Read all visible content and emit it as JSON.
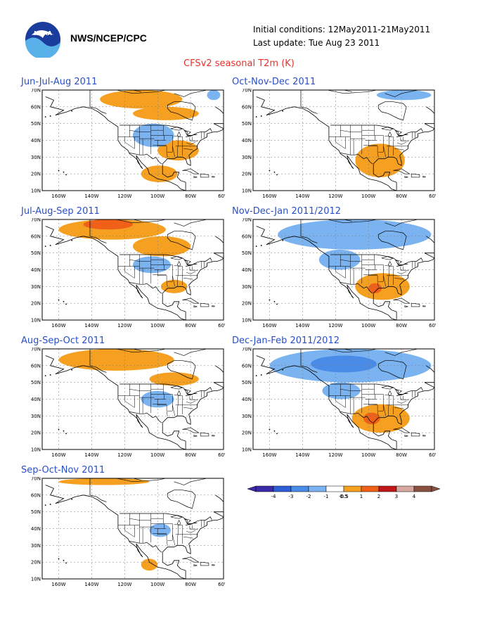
{
  "header": {
    "org": "NWS/NCEP/CPC",
    "initial_conditions": "Initial conditions: 12May2011-21May2011",
    "last_update": "Last update: Tue Aug 23 2011",
    "title": "CFSv2 seasonal T2m (K)",
    "logo": "noaa-logo"
  },
  "axes": {
    "lat_ticks": [
      "70N",
      "60N",
      "50N",
      "40N",
      "30N",
      "20N",
      "10N"
    ],
    "lon_ticks": [
      "160W",
      "140W",
      "120W",
      "100W",
      "80W",
      "60W"
    ]
  },
  "panels": [
    {
      "title": "Jun-Jul-Aug 2011",
      "anomalies": [
        {
          "cat": "warm1",
          "lon": [
            -135,
            -85
          ],
          "lat": [
            59,
            70
          ]
        },
        {
          "cat": "warm1",
          "lon": [
            -115,
            -75
          ],
          "lat": [
            52,
            60
          ]
        },
        {
          "cat": "warm1",
          "lon": [
            -100,
            -75
          ],
          "lat": [
            28,
            40
          ]
        },
        {
          "cat": "warm1",
          "lon": [
            -110,
            -88
          ],
          "lat": [
            15,
            25
          ]
        },
        {
          "cat": "cool1",
          "lon": [
            -115,
            -90
          ],
          "lat": [
            36,
            50
          ]
        },
        {
          "cat": "cool1",
          "lon": [
            -70,
            -62
          ],
          "lat": [
            64,
            70
          ]
        }
      ]
    },
    {
      "title": "Oct-Nov-Dec 2011",
      "anomalies": [
        {
          "cat": "warm1",
          "lon": [
            -108,
            -78
          ],
          "lat": [
            18,
            38
          ]
        },
        {
          "cat": "cool1",
          "lon": [
            -95,
            -62
          ],
          "lat": [
            64,
            70
          ]
        }
      ]
    },
    {
      "title": "Jul-Aug-Sep 2011",
      "anomalies": [
        {
          "cat": "warm1",
          "lon": [
            -160,
            -95
          ],
          "lat": [
            58,
            70
          ]
        },
        {
          "cat": "warm2",
          "lon": [
            -145,
            -115
          ],
          "lat": [
            64,
            70
          ]
        },
        {
          "cat": "warm1",
          "lon": [
            -115,
            -80
          ],
          "lat": [
            48,
            60
          ]
        },
        {
          "cat": "warm1",
          "lon": [
            -98,
            -82
          ],
          "lat": [
            26,
            34
          ]
        },
        {
          "cat": "cool1",
          "lon": [
            -115,
            -92
          ],
          "lat": [
            38,
            48
          ]
        }
      ]
    },
    {
      "title": "Nov-Dec-Jan 2011/2012",
      "anomalies": [
        {
          "cat": "cool1",
          "lon": [
            -155,
            -62
          ],
          "lat": [
            52,
            70
          ]
        },
        {
          "cat": "cool1",
          "lon": [
            -130,
            -105
          ],
          "lat": [
            40,
            52
          ]
        },
        {
          "cat": "warm1",
          "lon": [
            -108,
            -75
          ],
          "lat": [
            22,
            38
          ]
        },
        {
          "cat": "warm2",
          "lon": [
            -100,
            -92
          ],
          "lat": [
            26,
            32
          ]
        }
      ]
    },
    {
      "title": "Aug-Sep-Oct 2011",
      "anomalies": [
        {
          "cat": "warm1",
          "lon": [
            -160,
            -90
          ],
          "lat": [
            57,
            70
          ]
        },
        {
          "cat": "warm1",
          "lon": [
            -105,
            -75
          ],
          "lat": [
            48,
            56
          ]
        },
        {
          "cat": "cool1",
          "lon": [
            -110,
            -90
          ],
          "lat": [
            35,
            45
          ]
        }
      ]
    },
    {
      "title": "Dec-Jan-Feb 2011/2012",
      "anomalies": [
        {
          "cat": "cool1",
          "lon": [
            -160,
            -62
          ],
          "lat": [
            50,
            70
          ]
        },
        {
          "cat": "cool2",
          "lon": [
            -135,
            -95
          ],
          "lat": [
            56,
            66
          ]
        },
        {
          "cat": "cool1",
          "lon": [
            -128,
            -105
          ],
          "lat": [
            40,
            50
          ]
        },
        {
          "cat": "warm1",
          "lon": [
            -110,
            -75
          ],
          "lat": [
            20,
            37
          ]
        },
        {
          "cat": "warm2",
          "lon": [
            -103,
            -93
          ],
          "lat": [
            25,
            32
          ]
        }
      ]
    },
    {
      "title": "Sep-Oct-Nov 2011",
      "anomalies": [
        {
          "cat": "warm1",
          "lon": [
            -160,
            -105
          ],
          "lat": [
            66,
            70
          ]
        },
        {
          "cat": "cool1",
          "lon": [
            -105,
            -92
          ],
          "lat": [
            35,
            43
          ]
        },
        {
          "cat": "warm1",
          "lon": [
            -110,
            -100
          ],
          "lat": [
            15,
            22
          ]
        }
      ]
    }
  ],
  "colorbar": {
    "labels": [
      "-4",
      "-3",
      "-2",
      "-1",
      "-0.5",
      "0.5",
      "1",
      "2",
      "3",
      "4"
    ],
    "colors": [
      "#3a2aa8",
      "#2e5fd6",
      "#4a8be8",
      "#7ab3f0",
      "#ffffff",
      "#f5a020",
      "#f06018",
      "#c01818",
      "#d8a8a0",
      "#8a5040"
    ]
  },
  "colors": {
    "warm1": "#f5a020",
    "warm2": "#f06018",
    "cool1": "#7ab3f0",
    "cool2": "#4a8be8",
    "title_blue": "#2a4fc8",
    "title_red": "#e8312a"
  }
}
